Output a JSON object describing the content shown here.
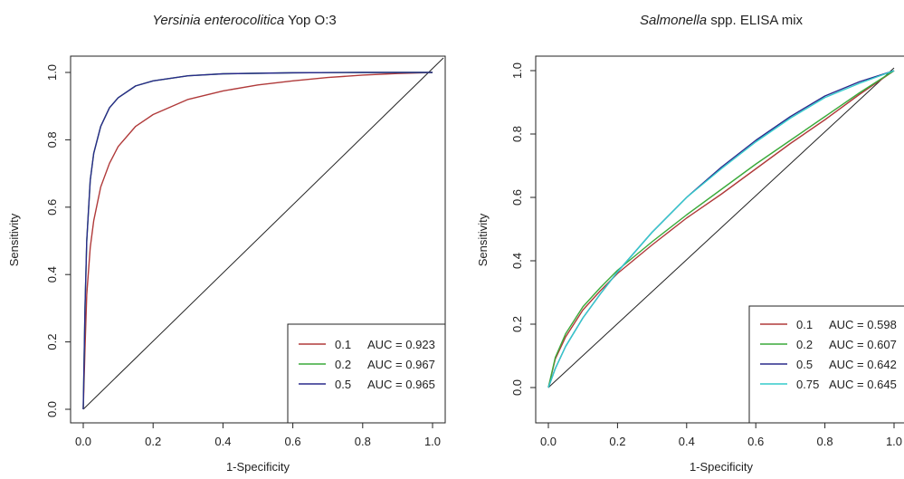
{
  "chart_data": [
    {
      "type": "line",
      "title_italic": "Yersinia enterocolitica",
      "title_rest": " Yop O:3",
      "xlabel": "1-Specificity",
      "ylabel": "Sensitivity",
      "xlim": [
        0,
        1
      ],
      "ylim": [
        0,
        1
      ],
      "xticks": [
        "0.0",
        "0.2",
        "0.4",
        "0.6",
        "0.8",
        "1.0"
      ],
      "yticks": [
        "0.0",
        "0.2",
        "0.4",
        "0.6",
        "0.8",
        "1.0"
      ],
      "grid": false,
      "legend_position": "bottom-right",
      "diagonal_reference": true,
      "series": [
        {
          "name": "0.1",
          "auc": "AUC = 0.923",
          "color": "#b03a3a",
          "x": [
            0,
            0.005,
            0.01,
            0.02,
            0.03,
            0.05,
            0.075,
            0.1,
            0.15,
            0.2,
            0.3,
            0.4,
            0.5,
            0.6,
            0.7,
            0.8,
            0.9,
            1.0
          ],
          "y": [
            0,
            0.18,
            0.34,
            0.48,
            0.56,
            0.66,
            0.73,
            0.78,
            0.84,
            0.875,
            0.92,
            0.945,
            0.963,
            0.975,
            0.985,
            0.992,
            0.997,
            1.0
          ]
        },
        {
          "name": "0.2",
          "auc": "AUC = 0.967",
          "color": "#3aaa3a",
          "x": [
            0,
            0.005,
            0.01,
            0.02,
            0.03,
            0.05,
            0.075,
            0.1,
            0.15,
            0.2,
            0.3,
            0.4,
            0.6,
            0.8,
            1.0
          ],
          "y": [
            0,
            0.3,
            0.5,
            0.68,
            0.76,
            0.84,
            0.895,
            0.925,
            0.96,
            0.975,
            0.99,
            0.996,
            0.999,
            1.0,
            1.0
          ]
        },
        {
          "name": "0.5",
          "auc": "AUC = 0.965",
          "color": "#2a2a8c",
          "x": [
            0,
            0.005,
            0.01,
            0.02,
            0.03,
            0.05,
            0.075,
            0.1,
            0.15,
            0.2,
            0.3,
            0.4,
            0.6,
            0.8,
            1.0
          ],
          "y": [
            0,
            0.3,
            0.5,
            0.68,
            0.76,
            0.84,
            0.895,
            0.925,
            0.96,
            0.975,
            0.99,
            0.996,
            0.999,
            1.0,
            1.0
          ]
        }
      ]
    },
    {
      "type": "line",
      "title_italic": "Salmonella",
      "title_rest": " spp. ELISA mix",
      "xlabel": "1-Specificity",
      "ylabel": "Sensitivity",
      "xlim": [
        0,
        1
      ],
      "ylim": [
        0,
        1
      ],
      "xticks": [
        "0.0",
        "0.2",
        "0.4",
        "0.6",
        "0.8",
        "1.0"
      ],
      "yticks": [
        "0.0",
        "0.2",
        "0.4",
        "0.6",
        "0.8",
        "1.0"
      ],
      "grid": false,
      "legend_position": "bottom-right",
      "diagonal_reference": true,
      "series": [
        {
          "name": "0.1",
          "auc": "AUC = 0.598",
          "color": "#b03a3a",
          "x": [
            0,
            0.02,
            0.05,
            0.1,
            0.15,
            0.2,
            0.3,
            0.4,
            0.5,
            0.6,
            0.7,
            0.8,
            0.9,
            1.0
          ],
          "y": [
            0,
            0.09,
            0.16,
            0.245,
            0.305,
            0.36,
            0.45,
            0.535,
            0.61,
            0.69,
            0.77,
            0.845,
            0.925,
            1.0
          ]
        },
        {
          "name": "0.2",
          "auc": "AUC = 0.607",
          "color": "#3aaa3a",
          "x": [
            0,
            0.02,
            0.05,
            0.1,
            0.15,
            0.2,
            0.3,
            0.4,
            0.5,
            0.6,
            0.7,
            0.8,
            0.9,
            1.0
          ],
          "y": [
            0,
            0.095,
            0.17,
            0.255,
            0.315,
            0.37,
            0.46,
            0.545,
            0.625,
            0.705,
            0.78,
            0.855,
            0.93,
            1.0
          ]
        },
        {
          "name": "0.5",
          "auc": "AUC = 0.642",
          "color": "#2a2a8c",
          "x": [
            0,
            0.02,
            0.05,
            0.1,
            0.15,
            0.2,
            0.3,
            0.4,
            0.5,
            0.6,
            0.7,
            0.8,
            0.9,
            1.0
          ],
          "y": [
            0,
            0.06,
            0.13,
            0.22,
            0.295,
            0.365,
            0.49,
            0.6,
            0.695,
            0.78,
            0.855,
            0.92,
            0.965,
            1.0
          ]
        },
        {
          "name": "0.75",
          "auc": "AUC = 0.645",
          "color": "#33cccc",
          "x": [
            0,
            0.02,
            0.05,
            0.1,
            0.15,
            0.2,
            0.3,
            0.4,
            0.5,
            0.6,
            0.7,
            0.8,
            0.9,
            1.0
          ],
          "y": [
            0,
            0.06,
            0.13,
            0.22,
            0.295,
            0.365,
            0.49,
            0.6,
            0.69,
            0.775,
            0.85,
            0.915,
            0.96,
            1.0
          ]
        }
      ]
    }
  ]
}
